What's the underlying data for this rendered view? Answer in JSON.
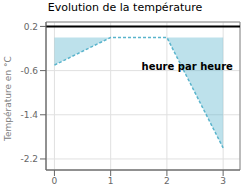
{
  "chart_data": {
    "type": "area",
    "title": "Evolution de la température",
    "ylabel": "Température en °C",
    "annotations": [
      {
        "text": "heure par heure",
        "x": 1.55,
        "y": -0.52
      }
    ],
    "x": [
      0,
      1,
      2,
      3
    ],
    "values": [
      -0.5,
      0.0,
      0.0,
      -2.0
    ],
    "color": "#5ab4cc",
    "xlim": [
      -0.15,
      3.3
    ],
    "ylim": [
      -2.4,
      0.28
    ],
    "xticks": [
      0,
      1,
      2,
      3
    ],
    "yticks": [
      0.2,
      -0.6,
      -1.4,
      -2.2
    ],
    "grid": true,
    "hline": 0.2
  }
}
